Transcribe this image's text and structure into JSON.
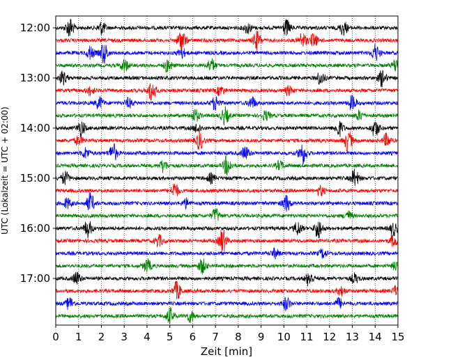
{
  "chart_data": {
    "type": "line",
    "title": "",
    "xlabel": "Zeit  [min]",
    "ylabel": "UTC (Lokalzeit = UTC + 02:00)",
    "xlim": [
      0,
      15
    ],
    "x_ticks": [
      0,
      1,
      2,
      3,
      4,
      5,
      6,
      7,
      8,
      9,
      10,
      11,
      12,
      13,
      14,
      15
    ],
    "y_tick_labels": [
      "12:00",
      "13:00",
      "14:00",
      "15:00",
      "16:00",
      "17:00"
    ],
    "grid": "vertical dotted",
    "trace_start_utc": "12:00",
    "trace_length_min": 15,
    "trace_colors": [
      "#000000",
      "#ff0000",
      "#0000ff",
      "#008000"
    ],
    "series": [
      {
        "start": "12:00",
        "color": "#000000",
        "events": [
          [
            0.6,
            1.6
          ],
          [
            2.0,
            1.0
          ],
          [
            8.4,
            0.8
          ],
          [
            10.1,
            1.2
          ],
          [
            12.6,
            1.1
          ]
        ]
      },
      {
        "start": "12:15",
        "color": "#ff0000",
        "events": [
          [
            5.5,
            1.8
          ],
          [
            8.8,
            1.4
          ],
          [
            10.8,
            1.2
          ],
          [
            11.3,
            1.0
          ]
        ]
      },
      {
        "start": "12:30",
        "color": "#0000ff",
        "events": [
          [
            1.5,
            1.0
          ],
          [
            2.1,
            1.6
          ],
          [
            5.5,
            0.8
          ],
          [
            14.0,
            1.3
          ]
        ]
      },
      {
        "start": "12:45",
        "color": "#008000",
        "events": [
          [
            3.0,
            1.0
          ],
          [
            4.9,
            1.0
          ],
          [
            6.8,
            1.0
          ],
          [
            14.9,
            1.0
          ]
        ]
      },
      {
        "start": "13:00",
        "color": "#000000",
        "events": [
          [
            0.3,
            1.0
          ],
          [
            11.6,
            1.0
          ],
          [
            14.3,
            1.3
          ]
        ]
      },
      {
        "start": "13:15",
        "color": "#ff0000",
        "events": [
          [
            1.5,
            0.7
          ],
          [
            4.2,
            1.6
          ],
          [
            7.2,
            0.7
          ],
          [
            10.2,
            0.7
          ]
        ]
      },
      {
        "start": "13:30",
        "color": "#0000ff",
        "events": [
          [
            1.9,
            0.9
          ],
          [
            3.2,
            0.7
          ],
          [
            7.0,
            1.1
          ],
          [
            8.6,
            0.9
          ],
          [
            13.0,
            1.1
          ]
        ]
      },
      {
        "start": "13:45",
        "color": "#008000",
        "events": [
          [
            6.1,
            1.0
          ],
          [
            7.4,
            1.3
          ],
          [
            9.2,
            0.7
          ],
          [
            13.3,
            0.7
          ]
        ]
      },
      {
        "start": "14:00",
        "color": "#000000",
        "events": [
          [
            1.1,
            1.2
          ],
          [
            6.2,
            0.7
          ],
          [
            12.4,
            1.3
          ],
          [
            14.0,
            1.3
          ]
        ]
      },
      {
        "start": "14:15",
        "color": "#ff0000",
        "events": [
          [
            1.0,
            0.7
          ],
          [
            6.3,
            1.4
          ],
          [
            12.8,
            1.6
          ],
          [
            14.5,
            1.0
          ]
        ]
      },
      {
        "start": "14:30",
        "color": "#0000ff",
        "events": [
          [
            1.3,
            0.8
          ],
          [
            2.5,
            1.5
          ],
          [
            8.3,
            1.0
          ],
          [
            10.8,
            1.7
          ]
        ]
      },
      {
        "start": "14:45",
        "color": "#008000",
        "events": [
          [
            4.7,
            0.9
          ],
          [
            7.5,
            1.5
          ],
          [
            9.8,
            0.7
          ]
        ]
      },
      {
        "start": "15:00",
        "color": "#000000",
        "events": [
          [
            0.4,
            1.0
          ],
          [
            6.8,
            0.7
          ],
          [
            13.1,
            1.3
          ]
        ]
      },
      {
        "start": "15:15",
        "color": "#ff0000",
        "events": [
          [
            5.2,
            1.2
          ],
          [
            11.6,
            0.7
          ]
        ]
      },
      {
        "start": "15:30",
        "color": "#0000ff",
        "events": [
          [
            0.5,
            0.8
          ],
          [
            1.5,
            1.5
          ],
          [
            5.7,
            0.7
          ],
          [
            10.1,
            1.3
          ]
        ]
      },
      {
        "start": "15:45",
        "color": "#008000",
        "events": [
          [
            7.0,
            1.1
          ],
          [
            12.8,
            0.7
          ]
        ]
      },
      {
        "start": "16:00",
        "color": "#000000",
        "events": [
          [
            1.4,
            1.3
          ],
          [
            10.6,
            1.0
          ],
          [
            11.5,
            1.5
          ],
          [
            14.8,
            1.0
          ]
        ]
      },
      {
        "start": "16:15",
        "color": "#ff0000",
        "events": [
          [
            4.5,
            0.9
          ],
          [
            7.3,
            1.8
          ],
          [
            14.8,
            0.9
          ]
        ]
      },
      {
        "start": "16:30",
        "color": "#0000ff",
        "events": [
          [
            9.6,
            0.7
          ],
          [
            11.7,
            0.7
          ]
        ]
      },
      {
        "start": "16:45",
        "color": "#008000",
        "events": [
          [
            4.0,
            1.0
          ],
          [
            6.4,
            1.2
          ],
          [
            14.9,
            0.6
          ]
        ]
      },
      {
        "start": "17:00",
        "color": "#000000",
        "events": [
          [
            0.9,
            1.0
          ],
          [
            11.1,
            1.1
          ],
          [
            13.1,
            0.7
          ]
        ]
      },
      {
        "start": "17:15",
        "color": "#ff0000",
        "events": [
          [
            5.3,
            1.4
          ],
          [
            12.5,
            0.7
          ],
          [
            14.9,
            0.7
          ]
        ]
      },
      {
        "start": "17:30",
        "color": "#0000ff",
        "events": [
          [
            0.6,
            0.9
          ],
          [
            10.1,
            1.0
          ],
          [
            12.4,
            0.8
          ]
        ]
      },
      {
        "start": "17:45",
        "color": "#008000",
        "events": [
          [
            5.0,
            1.2
          ],
          [
            5.9,
            0.9
          ]
        ]
      }
    ]
  }
}
